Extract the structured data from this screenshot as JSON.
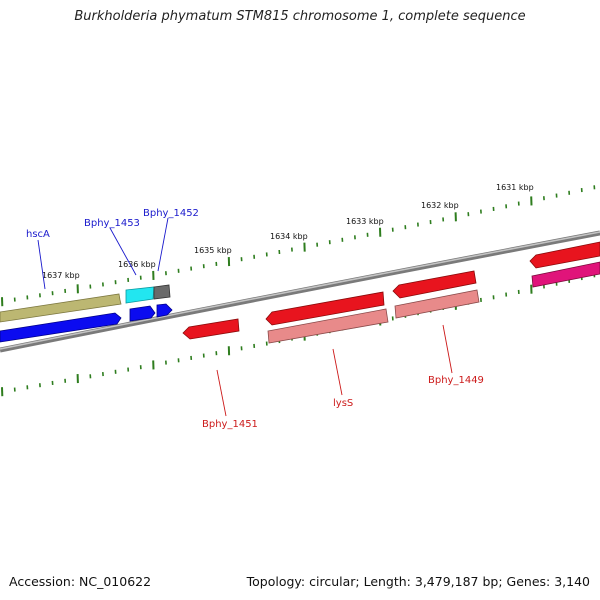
{
  "header": {
    "title": "Burkholderia phymatum STM815 chromosome 1, complete sequence"
  },
  "footer": {
    "accession": "Accession: NC_010622",
    "summary": "Topology: circular; Length: 3,479,187 bp; Genes: 3,140"
  },
  "map": {
    "kbp_labels": [
      {
        "id": "1637",
        "text": "1637 kbp"
      },
      {
        "id": "1636",
        "text": "1636 kbp"
      },
      {
        "id": "1635",
        "text": "1635 kbp"
      },
      {
        "id": "1634",
        "text": "1634 kbp"
      },
      {
        "id": "1633",
        "text": "1633 kbp"
      },
      {
        "id": "1632",
        "text": "1632 kbp"
      },
      {
        "id": "1631",
        "text": "1631 kbp"
      }
    ],
    "gene_labels": [
      {
        "id": "hscA",
        "text": "hscA",
        "color": "#1a1acc"
      },
      {
        "id": "bphy1453",
        "text": "Bphy_1453",
        "color": "#1a1acc"
      },
      {
        "id": "bphy1452",
        "text": "Bphy_1452",
        "color": "#1a1acc"
      },
      {
        "id": "bphy1451",
        "text": "Bphy_1451",
        "color": "#cc1a1a"
      },
      {
        "id": "lysS",
        "text": "lysS",
        "color": "#cc1a1a"
      },
      {
        "id": "bphy1449",
        "text": "Bphy_1449",
        "color": "#cc1a1a"
      }
    ],
    "colors": {
      "backbone": "#8a8a8a",
      "tick": "#2e7d1e",
      "forward_cds": "#0a0af0",
      "forward_gene": "#bdb873",
      "reverse_cds": "#e8141e",
      "reverse_gene": "#e88a8a",
      "cyan_feature": "#22e6f0",
      "gray_feature": "#6a6a6a",
      "magenta_feature": "#e0147a"
    }
  }
}
